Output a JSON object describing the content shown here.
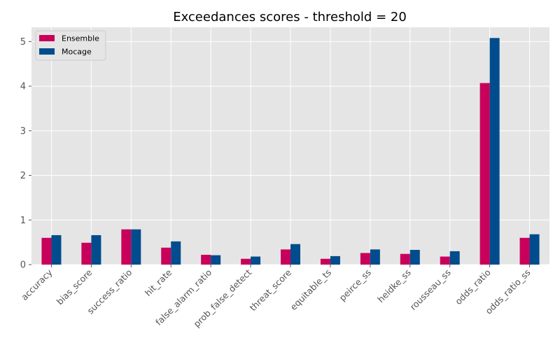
{
  "chart_data": {
    "type": "bar",
    "title": "Exceedances scores - threshold = 20",
    "xlabel": "",
    "ylabel": "",
    "categories": [
      "accuracy",
      "bias_score",
      "success_ratio",
      "hit_rate",
      "false_alarm_ratio",
      "prob_false_detect",
      "threat_score",
      "equitable_ts",
      "peirce_ss",
      "heidke_ss",
      "rousseau_ss",
      "odds_ratio",
      "odds_ratio_ss"
    ],
    "series": [
      {
        "name": "Ensemble",
        "color": "#c8005b",
        "values": [
          0.6,
          0.49,
          0.79,
          0.38,
          0.22,
          0.13,
          0.34,
          0.13,
          0.26,
          0.24,
          0.18,
          4.07,
          0.6
        ]
      },
      {
        "name": "Mocage",
        "color": "#004c8c",
        "values": [
          0.66,
          0.66,
          0.79,
          0.52,
          0.21,
          0.18,
          0.46,
          0.19,
          0.34,
          0.33,
          0.3,
          5.08,
          0.68
        ]
      }
    ],
    "ylim": [
      0,
      5.32
    ],
    "yticks": [
      0,
      1,
      2,
      3,
      4,
      5
    ],
    "grid": true,
    "legend_position": "top-left",
    "style": "ggplot"
  }
}
